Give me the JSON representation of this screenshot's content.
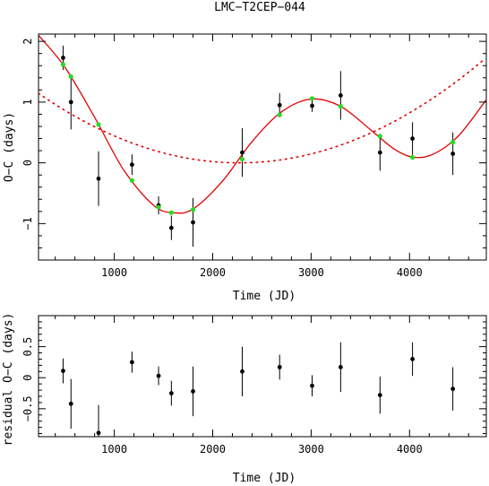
{
  "chart_data": [
    {
      "type": "scatter",
      "title": "LMC−T2CEP−044",
      "xlabel": "Time (JD)",
      "ylabel": "O−C (days)",
      "xlim": [
        230,
        4780
      ],
      "ylim": [
        -1.6,
        2.12
      ],
      "xticks_labeled": [
        1000,
        2000,
        3000,
        4000
      ],
      "yticks_labeled": [
        2,
        1,
        0,
        -1
      ],
      "ytick_labels": [
        "2",
        "1",
        "0",
        "−1"
      ],
      "points": [
        {
          "x": 480,
          "y": 1.73,
          "err": 0.2
        },
        {
          "x": 560,
          "y": 1.0,
          "err": 0.45
        },
        {
          "x": 840,
          "y": -0.26,
          "err": 0.45
        },
        {
          "x": 1180,
          "y": -0.03,
          "err": 0.17
        },
        {
          "x": 1450,
          "y": -0.7,
          "err": 0.15
        },
        {
          "x": 1580,
          "y": -1.07,
          "err": 0.2
        },
        {
          "x": 1800,
          "y": -0.98,
          "err": 0.4
        },
        {
          "x": 2300,
          "y": 0.17,
          "err": 0.4
        },
        {
          "x": 2680,
          "y": 0.95,
          "err": 0.2
        },
        {
          "x": 3010,
          "y": 0.94,
          "err": 0.1
        },
        {
          "x": 3300,
          "y": 1.11,
          "err": 0.4
        },
        {
          "x": 3700,
          "y": 0.17,
          "err": 0.3
        },
        {
          "x": 4030,
          "y": 0.4,
          "err": 0.27
        },
        {
          "x": 4440,
          "y": 0.15,
          "err": 0.35
        }
      ],
      "fit_points": [
        {
          "x": 480,
          "y": 1.62
        },
        {
          "x": 560,
          "y": 1.42
        },
        {
          "x": 840,
          "y": 0.63
        },
        {
          "x": 1180,
          "y": -0.29
        },
        {
          "x": 1450,
          "y": -0.73
        },
        {
          "x": 1580,
          "y": -0.82
        },
        {
          "x": 1800,
          "y": -0.77
        },
        {
          "x": 2300,
          "y": 0.06
        },
        {
          "x": 2680,
          "y": 0.79
        },
        {
          "x": 3010,
          "y": 1.06
        },
        {
          "x": 3300,
          "y": 0.93
        },
        {
          "x": 3700,
          "y": 0.44
        },
        {
          "x": 4030,
          "y": 0.09
        },
        {
          "x": 4440,
          "y": 0.34
        }
      ],
      "fit_curve": {
        "x": [
          230,
          500,
          800,
          1100,
          1400,
          1600,
          1800,
          2100,
          2400,
          2700,
          3000,
          3300,
          3600,
          3850,
          4050,
          4250,
          4500,
          4780
        ],
        "y": [
          2.1,
          1.57,
          0.75,
          -0.13,
          -0.7,
          -0.82,
          -0.76,
          -0.3,
          0.35,
          0.84,
          1.05,
          0.93,
          0.55,
          0.22,
          0.09,
          0.15,
          0.45,
          1.04
        ]
      },
      "parabola": {
        "vertex_x": 2270,
        "vertex_y": 0.0,
        "coef": 2.75e-07
      },
      "colors": {
        "points": "#000000",
        "fit_points": "#22dd22",
        "fit": "#e00000"
      }
    },
    {
      "type": "scatter",
      "xlabel": "Time (JD)",
      "ylabel": "residual O−C (days)",
      "xlim": [
        230,
        4780
      ],
      "ylim": [
        -0.95,
        1.0
      ],
      "xticks_labeled": [
        1000,
        2000,
        3000,
        4000
      ],
      "yticks_labeled": [
        0.5,
        0,
        -0.5
      ],
      "ytick_labels": [
        "0.5",
        "0",
        "−0.5"
      ],
      "points": [
        {
          "x": 480,
          "y": 0.11,
          "err": 0.2
        },
        {
          "x": 560,
          "y": -0.42,
          "err": 0.4
        },
        {
          "x": 840,
          "y": -0.89,
          "err": 0.45
        },
        {
          "x": 1180,
          "y": 0.25,
          "err": 0.17
        },
        {
          "x": 1450,
          "y": 0.03,
          "err": 0.15
        },
        {
          "x": 1580,
          "y": -0.25,
          "err": 0.2
        },
        {
          "x": 1800,
          "y": -0.22,
          "err": 0.4
        },
        {
          "x": 2300,
          "y": 0.1,
          "err": 0.4
        },
        {
          "x": 2680,
          "y": 0.17,
          "err": 0.2
        },
        {
          "x": 3010,
          "y": -0.13,
          "err": 0.17
        },
        {
          "x": 3300,
          "y": 0.17,
          "err": 0.4
        },
        {
          "x": 3700,
          "y": -0.28,
          "err": 0.3
        },
        {
          "x": 4030,
          "y": 0.3,
          "err": 0.27
        },
        {
          "x": 4440,
          "y": -0.18,
          "err": 0.35
        }
      ]
    }
  ]
}
